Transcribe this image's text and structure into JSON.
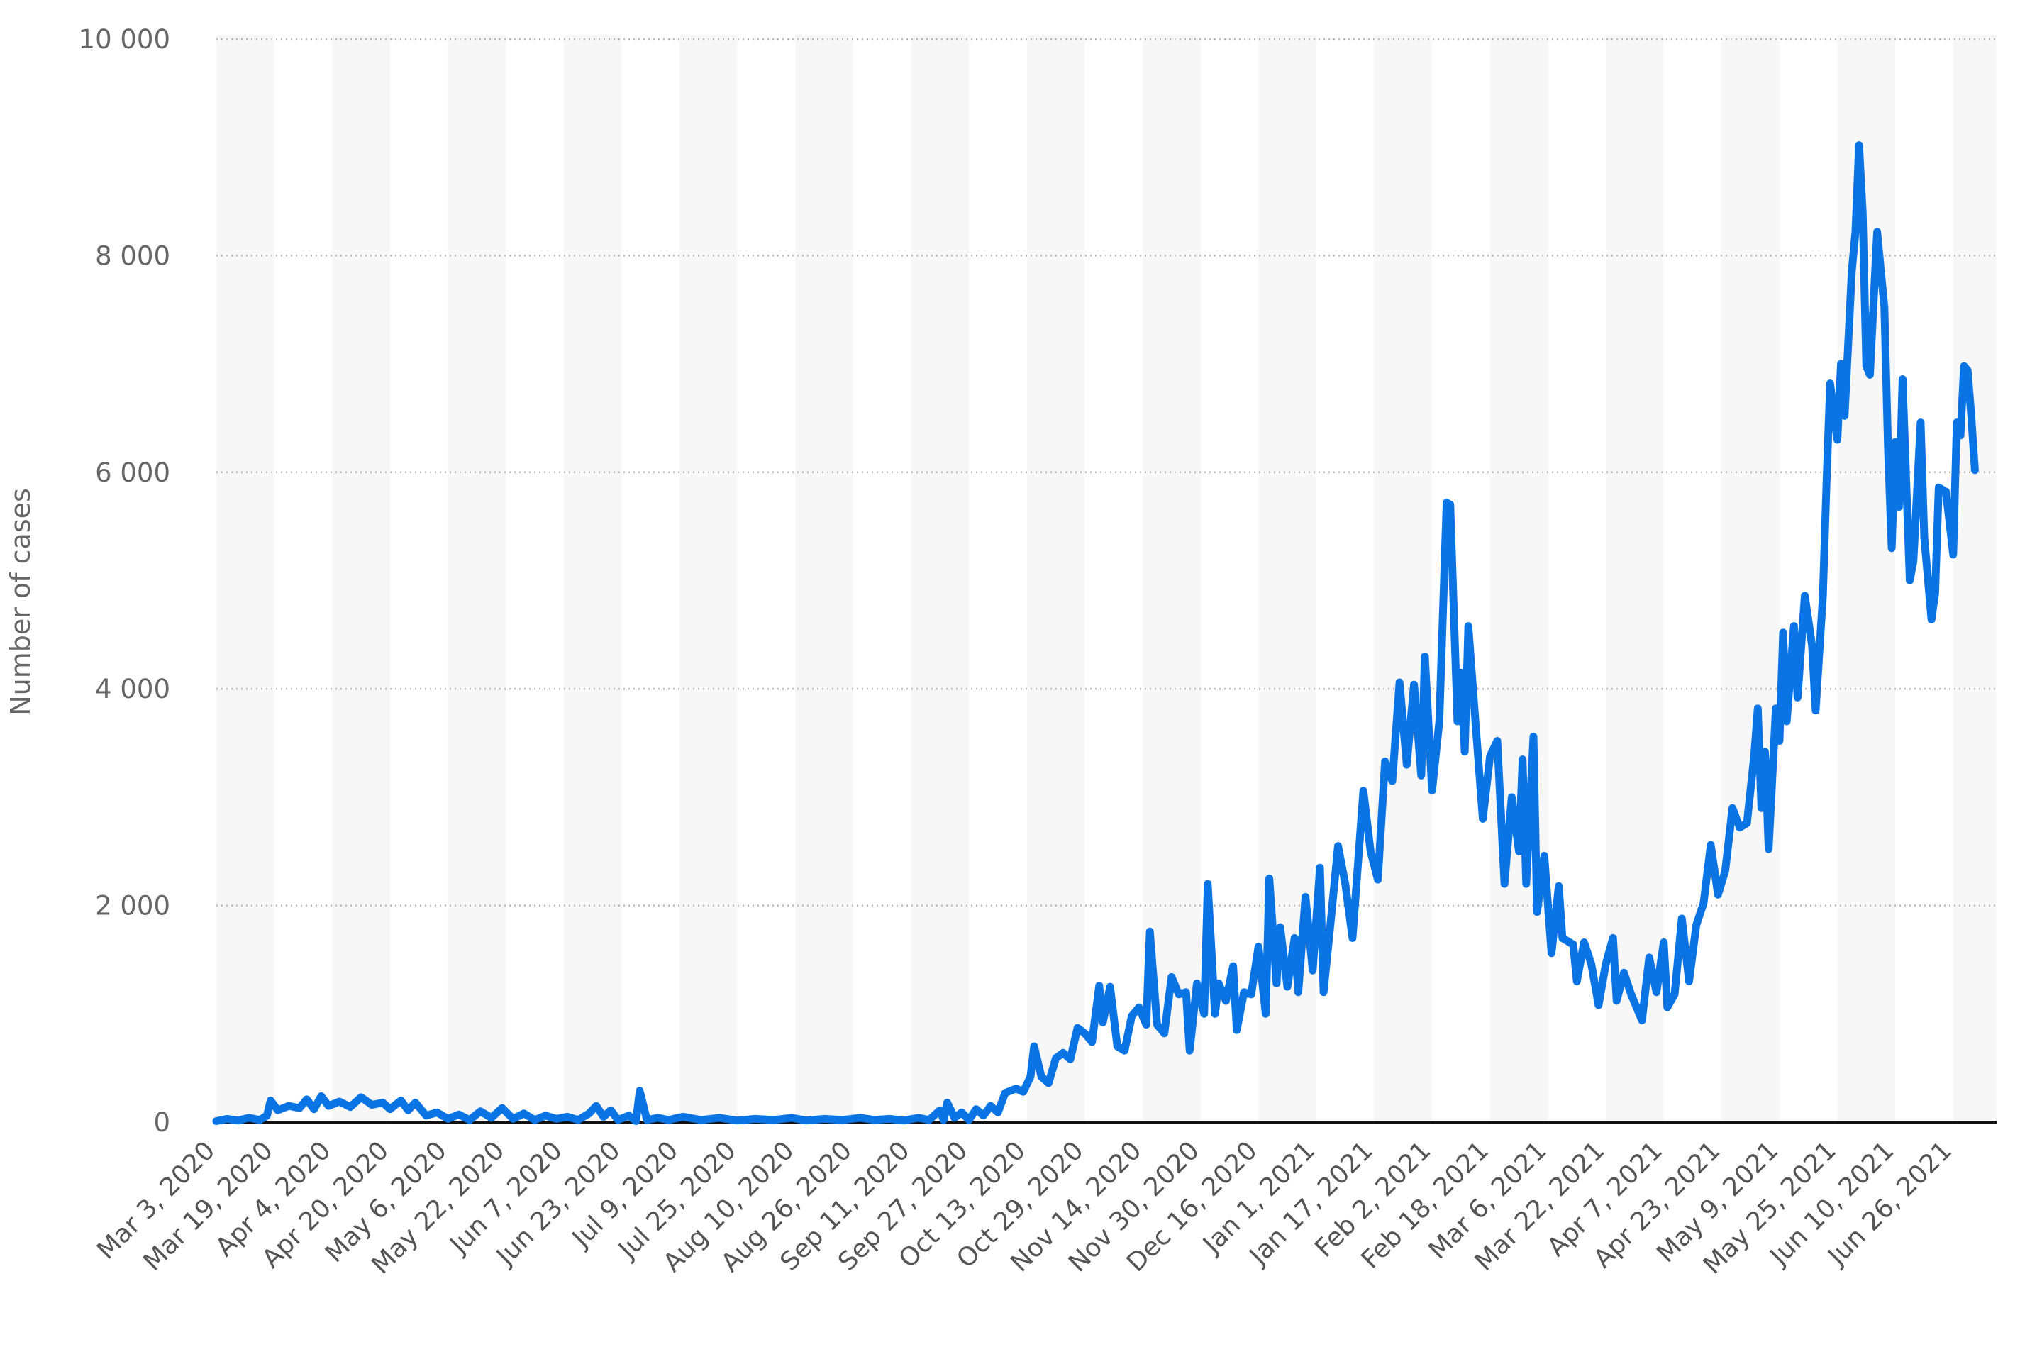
{
  "chart_data": {
    "type": "line",
    "title": "",
    "xlabel": "",
    "ylabel": "Number of cases",
    "ylim": [
      0,
      10000
    ],
    "y_ticks": [
      0,
      2000,
      4000,
      6000,
      8000,
      10000
    ],
    "y_tick_labels": [
      "0",
      "2 000",
      "4 000",
      "6 000",
      "8 000",
      "10 000"
    ],
    "x_range": [
      "2020-03-03",
      "2021-07-08"
    ],
    "x_tick_dates": [
      "2020-03-03",
      "2020-03-19",
      "2020-04-04",
      "2020-04-20",
      "2020-05-06",
      "2020-05-22",
      "2020-06-07",
      "2020-06-23",
      "2020-07-09",
      "2020-07-25",
      "2020-08-10",
      "2020-08-26",
      "2020-09-11",
      "2020-09-27",
      "2020-10-13",
      "2020-10-29",
      "2020-11-14",
      "2020-11-30",
      "2020-12-16",
      "2021-01-01",
      "2021-01-17",
      "2021-02-02",
      "2021-02-18",
      "2021-03-06",
      "2021-03-22",
      "2021-04-07",
      "2021-04-23",
      "2021-05-09",
      "2021-05-25",
      "2021-06-10",
      "2021-06-26"
    ],
    "x_tick_labels": [
      "Mar 3, 2020",
      "Mar 19, 2020",
      "Apr 4, 2020",
      "Apr 20, 2020",
      "May 6, 2020",
      "May 22, 2020",
      "Jun 7, 2020",
      "Jun 23, 2020",
      "Jul 9, 2020",
      "Jul 25, 2020",
      "Aug 10, 2020",
      "Aug 26, 2020",
      "Sep 11, 2020",
      "Sep 27, 2020",
      "Oct 13, 2020",
      "Oct 29, 2020",
      "Nov 14, 2020",
      "Nov 30, 2020",
      "Dec 16, 2020",
      "Jan 1, 2021",
      "Jan 17, 2021",
      "Feb 2, 2021",
      "Feb 18, 2021",
      "Mar 6, 2021",
      "Mar 22, 2021",
      "Apr 7, 2021",
      "Apr 23, 2021",
      "May 9, 2021",
      "May 25, 2021",
      "Jun 10, 2021",
      "Jun 26, 2021"
    ],
    "grid": true,
    "legend": "none",
    "series": [
      {
        "color": "#0b74e5",
        "points": [
          [
            "2020-03-03",
            10
          ],
          [
            "2020-03-06",
            30
          ],
          [
            "2020-03-09",
            15
          ],
          [
            "2020-03-12",
            40
          ],
          [
            "2020-03-15",
            20
          ],
          [
            "2020-03-17",
            60
          ],
          [
            "2020-03-18",
            200
          ],
          [
            "2020-03-20",
            110
          ],
          [
            "2020-03-23",
            150
          ],
          [
            "2020-03-26",
            130
          ],
          [
            "2020-03-28",
            210
          ],
          [
            "2020-03-30",
            120
          ],
          [
            "2020-04-01",
            240
          ],
          [
            "2020-04-03",
            150
          ],
          [
            "2020-04-06",
            190
          ],
          [
            "2020-04-09",
            140
          ],
          [
            "2020-04-12",
            230
          ],
          [
            "2020-04-15",
            160
          ],
          [
            "2020-04-18",
            180
          ],
          [
            "2020-04-20",
            120
          ],
          [
            "2020-04-23",
            200
          ],
          [
            "2020-04-25",
            110
          ],
          [
            "2020-04-27",
            180
          ],
          [
            "2020-04-30",
            60
          ],
          [
            "2020-05-03",
            90
          ],
          [
            "2020-05-06",
            30
          ],
          [
            "2020-05-09",
            70
          ],
          [
            "2020-05-12",
            20
          ],
          [
            "2020-05-15",
            100
          ],
          [
            "2020-05-18",
            40
          ],
          [
            "2020-05-21",
            130
          ],
          [
            "2020-05-24",
            30
          ],
          [
            "2020-05-27",
            80
          ],
          [
            "2020-05-30",
            20
          ],
          [
            "2020-06-02",
            60
          ],
          [
            "2020-06-05",
            30
          ],
          [
            "2020-06-08",
            50
          ],
          [
            "2020-06-11",
            20
          ],
          [
            "2020-06-14",
            80
          ],
          [
            "2020-06-16",
            150
          ],
          [
            "2020-06-18",
            50
          ],
          [
            "2020-06-20",
            110
          ],
          [
            "2020-06-22",
            20
          ],
          [
            "2020-06-25",
            60
          ],
          [
            "2020-06-27",
            10
          ],
          [
            "2020-06-28",
            290
          ],
          [
            "2020-06-30",
            20
          ],
          [
            "2020-07-03",
            40
          ],
          [
            "2020-07-06",
            20
          ],
          [
            "2020-07-10",
            50
          ],
          [
            "2020-07-15",
            20
          ],
          [
            "2020-07-20",
            40
          ],
          [
            "2020-07-25",
            15
          ],
          [
            "2020-07-30",
            30
          ],
          [
            "2020-08-04",
            20
          ],
          [
            "2020-08-09",
            40
          ],
          [
            "2020-08-13",
            15
          ],
          [
            "2020-08-18",
            30
          ],
          [
            "2020-08-23",
            20
          ],
          [
            "2020-08-28",
            40
          ],
          [
            "2020-09-01",
            20
          ],
          [
            "2020-09-05",
            30
          ],
          [
            "2020-09-09",
            15
          ],
          [
            "2020-09-13",
            40
          ],
          [
            "2020-09-16",
            20
          ],
          [
            "2020-09-19",
            110
          ],
          [
            "2020-09-20",
            20
          ],
          [
            "2020-09-21",
            180
          ],
          [
            "2020-09-23",
            40
          ],
          [
            "2020-09-25",
            90
          ],
          [
            "2020-09-27",
            20
          ],
          [
            "2020-09-29",
            120
          ],
          [
            "2020-10-01",
            60
          ],
          [
            "2020-10-03",
            150
          ],
          [
            "2020-10-05",
            90
          ],
          [
            "2020-10-07",
            270
          ],
          [
            "2020-10-10",
            310
          ],
          [
            "2020-10-12",
            280
          ],
          [
            "2020-10-14",
            420
          ],
          [
            "2020-10-15",
            700
          ],
          [
            "2020-10-17",
            420
          ],
          [
            "2020-10-19",
            360
          ],
          [
            "2020-10-21",
            590
          ],
          [
            "2020-10-23",
            640
          ],
          [
            "2020-10-25",
            580
          ],
          [
            "2020-10-27",
            870
          ],
          [
            "2020-10-29",
            820
          ],
          [
            "2020-10-31",
            740
          ],
          [
            "2020-11-02",
            1260
          ],
          [
            "2020-11-03",
            920
          ],
          [
            "2020-11-05",
            1250
          ],
          [
            "2020-11-07",
            700
          ],
          [
            "2020-11-09",
            660
          ],
          [
            "2020-11-11",
            980
          ],
          [
            "2020-11-13",
            1060
          ],
          [
            "2020-11-15",
            900
          ],
          [
            "2020-11-16",
            1760
          ],
          [
            "2020-11-18",
            900
          ],
          [
            "2020-11-20",
            820
          ],
          [
            "2020-11-22",
            1340
          ],
          [
            "2020-11-24",
            1180
          ],
          [
            "2020-11-26",
            1200
          ],
          [
            "2020-11-27",
            660
          ],
          [
            "2020-11-29",
            1280
          ],
          [
            "2020-12-01",
            1000
          ],
          [
            "2020-12-02",
            2200
          ],
          [
            "2020-12-04",
            1000
          ],
          [
            "2020-12-05",
            1280
          ],
          [
            "2020-12-07",
            1120
          ],
          [
            "2020-12-09",
            1440
          ],
          [
            "2020-12-10",
            850
          ],
          [
            "2020-12-12",
            1200
          ],
          [
            "2020-12-14",
            1180
          ],
          [
            "2020-12-16",
            1620
          ],
          [
            "2020-12-18",
            1000
          ],
          [
            "2020-12-19",
            2250
          ],
          [
            "2020-12-21",
            1280
          ],
          [
            "2020-12-22",
            1800
          ],
          [
            "2020-12-24",
            1250
          ],
          [
            "2020-12-26",
            1700
          ],
          [
            "2020-12-27",
            1200
          ],
          [
            "2020-12-29",
            2080
          ],
          [
            "2020-12-31",
            1400
          ],
          [
            "2021-01-02",
            2350
          ],
          [
            "2021-01-03",
            1200
          ],
          [
            "2021-01-05",
            1860
          ],
          [
            "2021-01-07",
            2550
          ],
          [
            "2021-01-09",
            2200
          ],
          [
            "2021-01-11",
            1700
          ],
          [
            "2021-01-14",
            3060
          ],
          [
            "2021-01-16",
            2500
          ],
          [
            "2021-01-18",
            2240
          ],
          [
            "2021-01-20",
            3330
          ],
          [
            "2021-01-22",
            3150
          ],
          [
            "2021-01-24",
            4060
          ],
          [
            "2021-01-26",
            3300
          ],
          [
            "2021-01-28",
            4040
          ],
          [
            "2021-01-30",
            3200
          ],
          [
            "2021-01-31",
            4300
          ],
          [
            "2021-02-02",
            3060
          ],
          [
            "2021-02-04",
            3700
          ],
          [
            "2021-02-06",
            5720
          ],
          [
            "2021-02-07",
            5700
          ],
          [
            "2021-02-09",
            3700
          ],
          [
            "2021-02-10",
            4150
          ],
          [
            "2021-02-11",
            3420
          ],
          [
            "2021-02-12",
            4580
          ],
          [
            "2021-02-14",
            3680
          ],
          [
            "2021-02-16",
            2800
          ],
          [
            "2021-02-18",
            3380
          ],
          [
            "2021-02-20",
            3520
          ],
          [
            "2021-02-22",
            2200
          ],
          [
            "2021-02-24",
            3000
          ],
          [
            "2021-02-26",
            2500
          ],
          [
            "2021-02-27",
            3350
          ],
          [
            "2021-02-28",
            2200
          ],
          [
            "2021-03-02",
            3560
          ],
          [
            "2021-03-03",
            1940
          ],
          [
            "2021-03-05",
            2460
          ],
          [
            "2021-03-07",
            1560
          ],
          [
            "2021-03-09",
            2180
          ],
          [
            "2021-03-10",
            1700
          ],
          [
            "2021-03-13",
            1640
          ],
          [
            "2021-03-14",
            1300
          ],
          [
            "2021-03-16",
            1660
          ],
          [
            "2021-03-18",
            1460
          ],
          [
            "2021-03-20",
            1080
          ],
          [
            "2021-03-22",
            1460
          ],
          [
            "2021-03-24",
            1700
          ],
          [
            "2021-03-25",
            1120
          ],
          [
            "2021-03-27",
            1380
          ],
          [
            "2021-03-29",
            1180
          ],
          [
            "2021-04-01",
            940
          ],
          [
            "2021-04-03",
            1520
          ],
          [
            "2021-04-05",
            1200
          ],
          [
            "2021-04-07",
            1660
          ],
          [
            "2021-04-08",
            1060
          ],
          [
            "2021-04-10",
            1180
          ],
          [
            "2021-04-12",
            1880
          ],
          [
            "2021-04-14",
            1300
          ],
          [
            "2021-04-16",
            1820
          ],
          [
            "2021-04-18",
            2020
          ],
          [
            "2021-04-20",
            2560
          ],
          [
            "2021-04-22",
            2100
          ],
          [
            "2021-04-24",
            2320
          ],
          [
            "2021-04-26",
            2900
          ],
          [
            "2021-04-28",
            2720
          ],
          [
            "2021-04-30",
            2760
          ],
          [
            "2021-05-02",
            3380
          ],
          [
            "2021-05-03",
            3820
          ],
          [
            "2021-05-04",
            2900
          ],
          [
            "2021-05-05",
            3420
          ],
          [
            "2021-05-06",
            2520
          ],
          [
            "2021-05-08",
            3820
          ],
          [
            "2021-05-09",
            3520
          ],
          [
            "2021-05-10",
            4520
          ],
          [
            "2021-05-11",
            3700
          ],
          [
            "2021-05-13",
            4580
          ],
          [
            "2021-05-14",
            3920
          ],
          [
            "2021-05-16",
            4860
          ],
          [
            "2021-05-18",
            4400
          ],
          [
            "2021-05-19",
            3800
          ],
          [
            "2021-05-21",
            4860
          ],
          [
            "2021-05-22",
            5900
          ],
          [
            "2021-05-23",
            6820
          ],
          [
            "2021-05-25",
            6300
          ],
          [
            "2021-05-26",
            7000
          ],
          [
            "2021-05-27",
            6520
          ],
          [
            "2021-05-29",
            7860
          ],
          [
            "2021-05-30",
            8220
          ],
          [
            "2021-05-31",
            9020
          ],
          [
            "2021-06-01",
            8400
          ],
          [
            "2021-06-02",
            6980
          ],
          [
            "2021-06-03",
            6900
          ],
          [
            "2021-06-05",
            8220
          ],
          [
            "2021-06-07",
            7520
          ],
          [
            "2021-06-08",
            6200
          ],
          [
            "2021-06-09",
            5300
          ],
          [
            "2021-06-10",
            6280
          ],
          [
            "2021-06-11",
            5680
          ],
          [
            "2021-06-12",
            6860
          ],
          [
            "2021-06-14",
            5000
          ],
          [
            "2021-06-15",
            5180
          ],
          [
            "2021-06-17",
            6460
          ],
          [
            "2021-06-18",
            5400
          ],
          [
            "2021-06-20",
            4640
          ],
          [
            "2021-06-21",
            4880
          ],
          [
            "2021-06-22",
            5860
          ],
          [
            "2021-06-24",
            5820
          ],
          [
            "2021-06-26",
            5240
          ],
          [
            "2021-06-27",
            6460
          ],
          [
            "2021-06-28",
            6340
          ],
          [
            "2021-06-29",
            6980
          ],
          [
            "2021-06-30",
            6940
          ],
          [
            "2021-07-01",
            6520
          ],
          [
            "2021-07-02",
            6020
          ]
        ]
      }
    ]
  }
}
